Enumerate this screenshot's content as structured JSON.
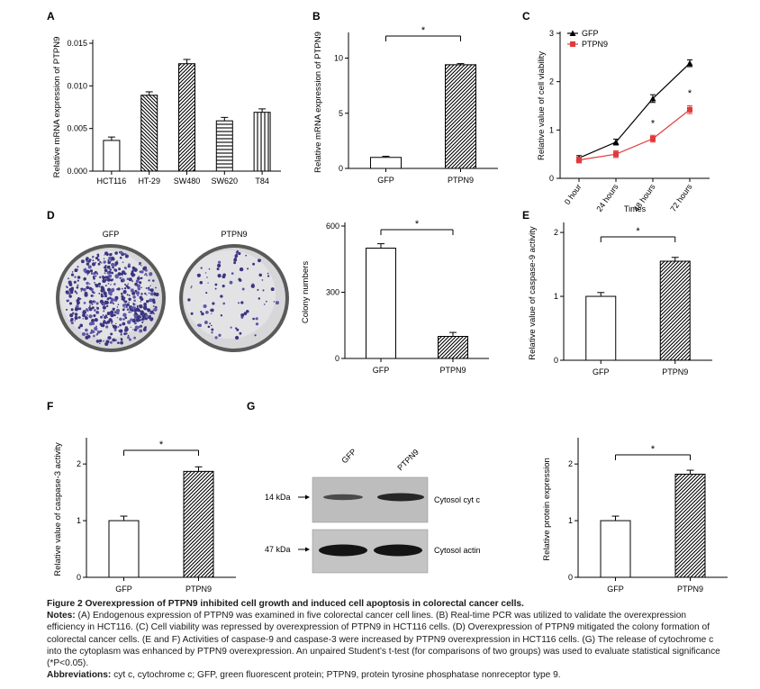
{
  "chart_data": [
    {
      "panel": "A",
      "type": "bar",
      "ylabel": "Relative mRNA expression of PTPN9",
      "categories": [
        "HCT116",
        "HT-29",
        "SW480",
        "SW620",
        "T84"
      ],
      "values": [
        0.0036,
        0.0089,
        0.0126,
        0.0059,
        0.0069
      ],
      "errors": [
        0.0004,
        0.0004,
        0.0005,
        0.0004,
        0.0004
      ],
      "patterns": [
        "none",
        "diag-back",
        "diag-fwd",
        "horizontal",
        "vertical"
      ],
      "ylim": [
        0,
        0.015
      ],
      "yticks": [
        "0.000",
        "0.005",
        "0.010",
        "0.015"
      ]
    },
    {
      "panel": "B",
      "type": "bar",
      "ylabel": "Relative mRNA expression of PTPN9",
      "categories": [
        "GFP",
        "PTPN9"
      ],
      "values": [
        1.0,
        9.4
      ],
      "errors": [
        0.1,
        0.1
      ],
      "ylim": [
        0,
        12
      ],
      "yticks": [
        "0",
        "5",
        "10"
      ],
      "significance": "*"
    },
    {
      "panel": "C",
      "type": "line",
      "xlabel": "Times",
      "ylabel": "Relative value of cell viability",
      "x": [
        "0 hour",
        "24 hours",
        "48 hours",
        "72 hours"
      ],
      "series": [
        {
          "name": "GFP",
          "color": "#000000",
          "values": [
            0.42,
            0.75,
            1.65,
            2.38
          ],
          "errors": [
            0.05,
            0.06,
            0.08,
            0.07
          ]
        },
        {
          "name": "PTPN9",
          "color": "#e03a3a",
          "values": [
            0.38,
            0.5,
            0.82,
            1.42
          ],
          "errors": [
            0.06,
            0.07,
            0.07,
            0.08
          ]
        }
      ],
      "ylim": [
        0,
        3
      ],
      "yticks": [
        "0",
        "1",
        "2",
        "3"
      ],
      "significance_marks": [
        "*",
        "*"
      ],
      "legend": "top-left"
    },
    {
      "panel": "D",
      "type": "bar",
      "ylabel": "Colony numbers",
      "categories": [
        "GFP",
        "PTPN9"
      ],
      "values": [
        500,
        100
      ],
      "errors": [
        20,
        18
      ],
      "ylim": [
        0,
        600
      ],
      "yticks": [
        "0",
        "300",
        "600"
      ],
      "significance": "*",
      "image_labels": [
        "GFP",
        "PTPN9"
      ]
    },
    {
      "panel": "E",
      "type": "bar",
      "ylabel": "Relative value of caspase-9 activity",
      "categories": [
        "GFP",
        "PTPN9"
      ],
      "values": [
        1.0,
        1.55
      ],
      "errors": [
        0.06,
        0.06
      ],
      "ylim": [
        0,
        2.1
      ],
      "yticks": [
        "0",
        "1",
        "2"
      ],
      "significance": "*"
    },
    {
      "panel": "F",
      "type": "bar",
      "ylabel": "Relative value of caspase-3 activity",
      "categories": [
        "GFP",
        "PTPN9"
      ],
      "values": [
        1.0,
        1.87
      ],
      "errors": [
        0.08,
        0.08
      ],
      "ylim": [
        0,
        2.4
      ],
      "yticks": [
        "0",
        "1",
        "2"
      ],
      "significance": "*"
    },
    {
      "panel": "G",
      "type": "bar",
      "ylabel": "Relative protein expression",
      "categories": [
        "GFP",
        "PTPN9"
      ],
      "values": [
        1.0,
        1.82
      ],
      "errors": [
        0.08,
        0.07
      ],
      "ylim": [
        0,
        2.4
      ],
      "yticks": [
        "0",
        "1",
        "2"
      ],
      "significance": "*",
      "blot": {
        "lanes": [
          "GFP",
          "PTPN9"
        ],
        "markers": [
          "14 kDa",
          "47 kDa"
        ],
        "bands": [
          "Cytosol cyt c",
          "Cytosol actin"
        ]
      }
    }
  ],
  "caption": {
    "title": "Figure 2 Overexpression of PTPN9 inhibited cell growth and induced cell apoptosis in colorectal cancer cells.",
    "notes_label": "Notes:",
    "notes_text": "(A) Endogenous expression of PTPN9 was examined in five colorectal cancer cell lines. (B) Real-time PCR was utilized to validate the overexpression efficiency in HCT116. (C) Cell viability was repressed by overexpression of PTPN9 in HCT116 cells. (D) Overexpression of PTPN9 mitigated the colony formation of colorectal cancer cells. (E and F) Activities of caspase-9 and caspase-3 were increased by PTPN9 overexpression in HCT116 cells. (G) The release of cytochrome c into the cytoplasm was enhanced by PTPN9 overexpression. An unpaired Student’s t-test (for comparisons of two groups) was used to evaluate statistical significance (*P<0.05).",
    "abbrev_label": "Abbreviations:",
    "abbrev_text": "cyt c, cytochrome c; GFP, green fluorescent protein; PTPN9, protein tyrosine phosphatase nonreceptor type 9."
  }
}
